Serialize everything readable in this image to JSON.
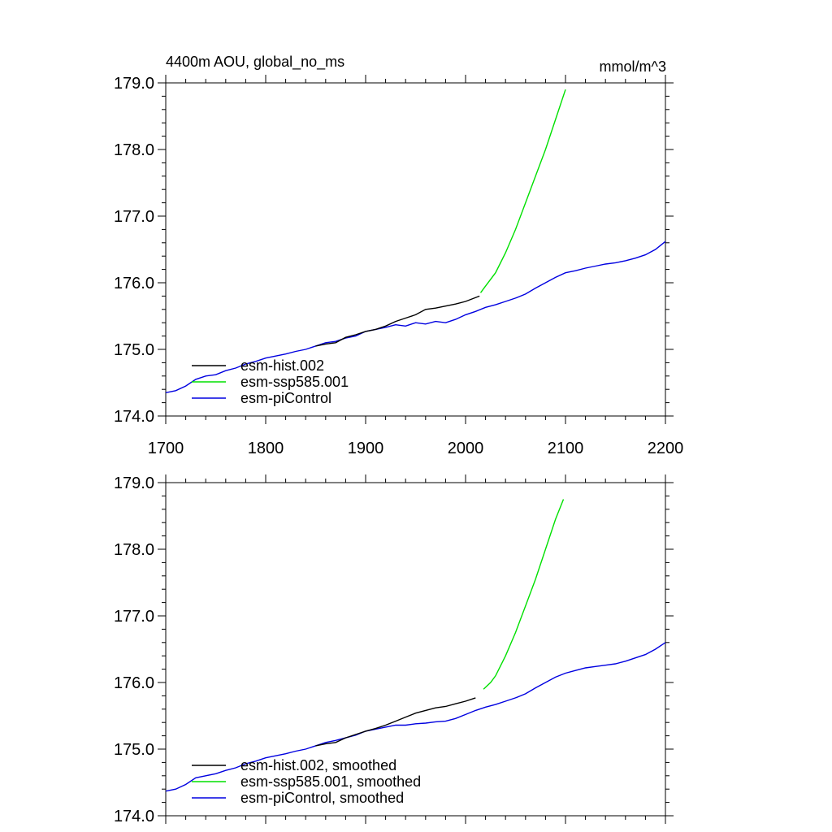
{
  "chart_data": [
    {
      "type": "line",
      "title": "4400m AOU, global_no_ms",
      "units": "mmol/m^3",
      "xlim": [
        1700,
        2200
      ],
      "ylim": [
        174.0,
        179.0
      ],
      "xticks": [
        "1700",
        "1800",
        "1900",
        "2000",
        "2100",
        "2200"
      ],
      "yticks": [
        "174.0",
        "175.0",
        "176.0",
        "177.0",
        "178.0",
        "179.0"
      ],
      "grid": false,
      "legend_position": "bottom-left",
      "series": [
        {
          "name": "esm-hist.002",
          "color": "#000000",
          "x": [
            1850,
            1860,
            1870,
            1880,
            1890,
            1900,
            1910,
            1920,
            1930,
            1940,
            1950,
            1960,
            1970,
            1980,
            1990,
            2000,
            2014
          ],
          "y": [
            175.05,
            175.08,
            175.1,
            175.18,
            175.22,
            175.27,
            175.3,
            175.35,
            175.42,
            175.47,
            175.52,
            175.6,
            175.62,
            175.65,
            175.68,
            175.72,
            175.8
          ]
        },
        {
          "name": "esm-ssp585.001",
          "color": "#00e000",
          "x": [
            2015,
            2020,
            2030,
            2040,
            2050,
            2060,
            2070,
            2080,
            2090,
            2100
          ],
          "y": [
            175.85,
            175.95,
            176.15,
            176.45,
            176.8,
            177.2,
            177.6,
            178.0,
            178.45,
            178.9
          ]
        },
        {
          "name": "esm-piControl",
          "color": "#0000e0",
          "x": [
            1700,
            1710,
            1720,
            1730,
            1740,
            1750,
            1760,
            1770,
            1780,
            1790,
            1800,
            1810,
            1820,
            1830,
            1840,
            1850,
            1860,
            1870,
            1880,
            1890,
            1900,
            1910,
            1920,
            1930,
            1940,
            1950,
            1960,
            1970,
            1980,
            1990,
            2000,
            2010,
            2020,
            2030,
            2040,
            2050,
            2060,
            2070,
            2080,
            2090,
            2100,
            2110,
            2120,
            2130,
            2140,
            2150,
            2160,
            2170,
            2180,
            2190,
            2200
          ],
          "y": [
            174.35,
            174.38,
            174.45,
            174.55,
            174.6,
            174.62,
            174.68,
            174.72,
            174.78,
            174.82,
            174.87,
            174.9,
            174.93,
            174.97,
            175.0,
            175.05,
            175.1,
            175.12,
            175.17,
            175.2,
            175.27,
            175.3,
            175.33,
            175.37,
            175.35,
            175.4,
            175.38,
            175.42,
            175.4,
            175.45,
            175.52,
            175.57,
            175.63,
            175.67,
            175.72,
            175.77,
            175.83,
            175.92,
            176.0,
            176.08,
            176.15,
            176.18,
            176.22,
            176.25,
            176.28,
            176.3,
            176.33,
            176.37,
            176.42,
            176.5,
            176.62
          ]
        }
      ]
    },
    {
      "type": "line",
      "xlim": [
        1700,
        2200
      ],
      "ylim": [
        174.0,
        179.0
      ],
      "yticks": [
        "174.0",
        "175.0",
        "176.0",
        "177.0",
        "178.0",
        "179.0"
      ],
      "grid": false,
      "legend_position": "bottom-left",
      "series": [
        {
          "name": "esm-hist.002, smoothed",
          "color": "#000000",
          "x": [
            1850,
            1860,
            1870,
            1880,
            1890,
            1900,
            1910,
            1920,
            1930,
            1940,
            1950,
            1960,
            1970,
            1980,
            1990,
            2000,
            2010
          ],
          "y": [
            175.05,
            175.08,
            175.1,
            175.17,
            175.22,
            175.27,
            175.31,
            175.36,
            175.42,
            175.48,
            175.54,
            175.58,
            175.62,
            175.64,
            175.68,
            175.72,
            175.77
          ]
        },
        {
          "name": "esm-ssp585.001, smoothed",
          "color": "#00e000",
          "x": [
            2018,
            2025,
            2030,
            2040,
            2050,
            2060,
            2070,
            2080,
            2090,
            2098
          ],
          "y": [
            175.9,
            176.0,
            176.1,
            176.4,
            176.75,
            177.15,
            177.55,
            178.0,
            178.45,
            178.75
          ]
        },
        {
          "name": "esm-piControl, smoothed",
          "color": "#0000e0",
          "x": [
            1700,
            1710,
            1720,
            1730,
            1740,
            1750,
            1760,
            1770,
            1780,
            1790,
            1800,
            1810,
            1820,
            1830,
            1840,
            1850,
            1860,
            1870,
            1880,
            1890,
            1900,
            1910,
            1920,
            1930,
            1940,
            1950,
            1960,
            1970,
            1980,
            1990,
            2000,
            2010,
            2020,
            2030,
            2040,
            2050,
            2060,
            2070,
            2080,
            2090,
            2100,
            2110,
            2120,
            2130,
            2140,
            2150,
            2160,
            2170,
            2180,
            2190,
            2200
          ],
          "y": [
            174.37,
            174.4,
            174.47,
            174.57,
            174.6,
            174.63,
            174.68,
            174.72,
            174.78,
            174.82,
            174.87,
            174.9,
            174.93,
            174.97,
            175.0,
            175.05,
            175.1,
            175.13,
            175.17,
            175.21,
            175.27,
            175.3,
            175.33,
            175.36,
            175.36,
            175.38,
            175.39,
            175.41,
            175.42,
            175.46,
            175.52,
            175.58,
            175.63,
            175.67,
            175.72,
            175.77,
            175.83,
            175.92,
            176.0,
            176.08,
            176.14,
            176.18,
            176.22,
            176.24,
            176.26,
            176.28,
            176.32,
            176.37,
            176.42,
            176.5,
            176.6
          ]
        }
      ]
    }
  ]
}
